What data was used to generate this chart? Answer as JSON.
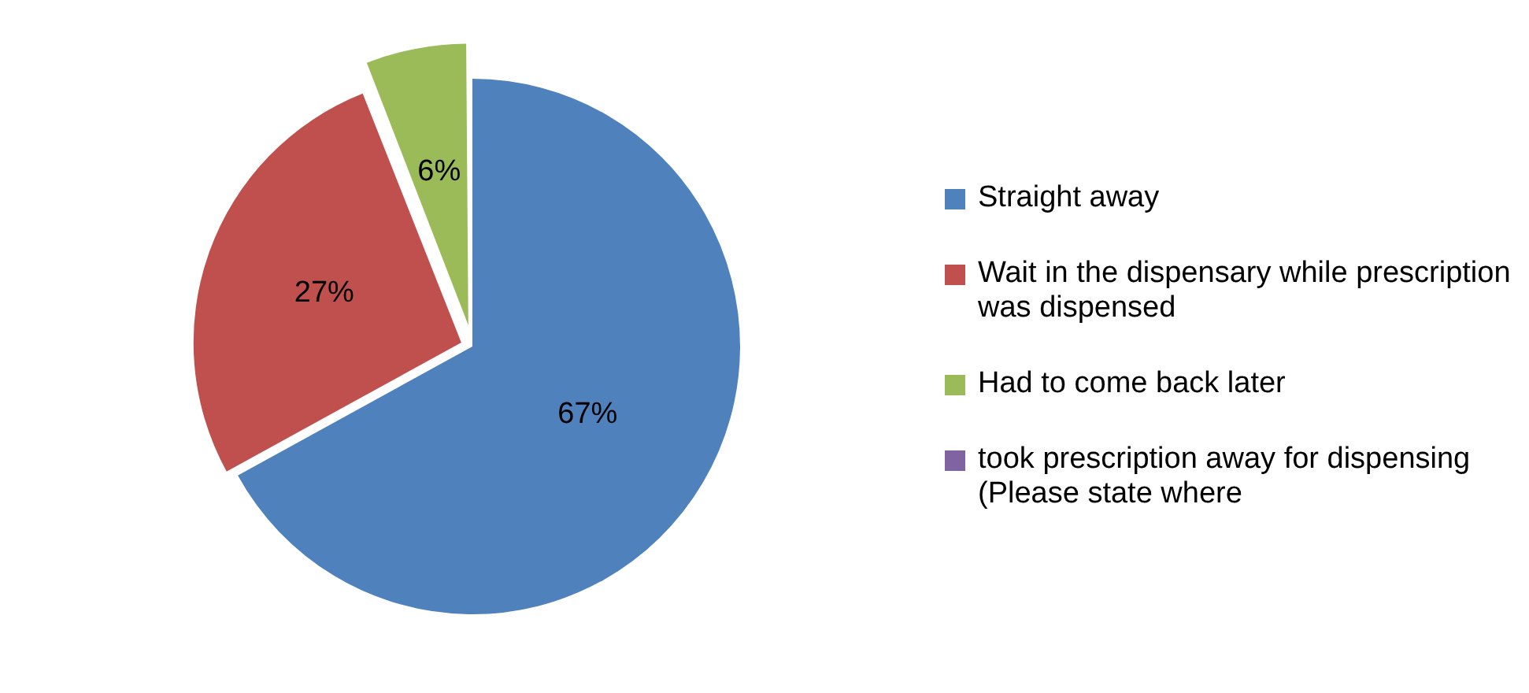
{
  "chart_data": {
    "type": "pie",
    "categories": [
      "Straight away",
      "Wait in the dispensary while prescription was dispensed",
      "Had to come back later",
      "took prescription away for dispensing (Please state where"
    ],
    "values": [
      67,
      27,
      6,
      0
    ],
    "colors": [
      "#4f81bd",
      "#c0504d",
      "#9bbb59",
      "#8064a2"
    ],
    "value_labels": [
      "67%",
      "27%",
      "6%",
      null
    ],
    "legend": "right"
  }
}
